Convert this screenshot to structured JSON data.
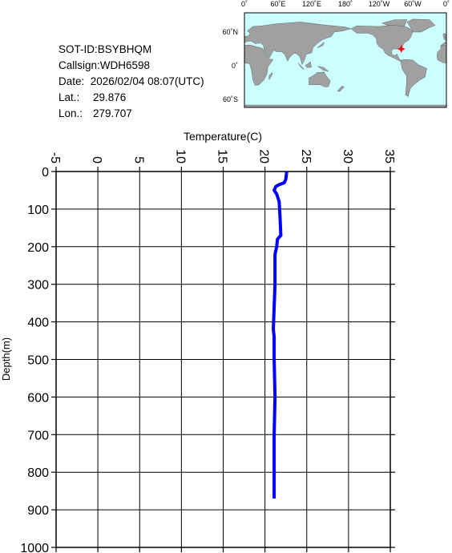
{
  "info": {
    "sot_id": "SOT-ID:BSYBHQM",
    "callsign": "Callsign:WDH6598",
    "date": "Date:  2026/02/04 08:07(UTC)",
    "lat_label": "Lat.:",
    "lat": 29.876,
    "lon_label": "Lon.:",
    "lon": 279.707
  },
  "map": {
    "top_labels": [
      "0˚",
      "60˚E",
      "120˚E",
      "180˚",
      "120˚W",
      "60˚W",
      "0˚"
    ],
    "left_labels": [
      "60˚N",
      "0˚",
      "60˚S"
    ]
  },
  "chart_data": {
    "type": "line",
    "xlabel": "Temperature(C)",
    "ylabel": "Depth(m)",
    "xlim": [
      -5,
      35
    ],
    "xticks": [
      -5,
      0,
      5,
      10,
      15,
      20,
      25,
      30,
      35
    ],
    "ylim": [
      0,
      1000
    ],
    "yticks": [
      0,
      100,
      200,
      300,
      400,
      500,
      600,
      700,
      800,
      900,
      1000
    ],
    "y_inverted": true,
    "grid": true,
    "color": "#0000ff",
    "x": [
      22.6,
      22.5,
      22.3,
      21.7,
      21.3,
      21.1,
      21.4,
      21.7,
      21.8,
      21.9,
      21.5,
      21.4,
      21.2,
      21.2,
      21.0,
      21.1,
      21.1,
      21.2,
      21.1,
      21.1
    ],
    "y": [
      0,
      20,
      30,
      35,
      40,
      50,
      60,
      80,
      120,
      170,
      180,
      200,
      220,
      300,
      420,
      440,
      500,
      600,
      700,
      870
    ]
  }
}
